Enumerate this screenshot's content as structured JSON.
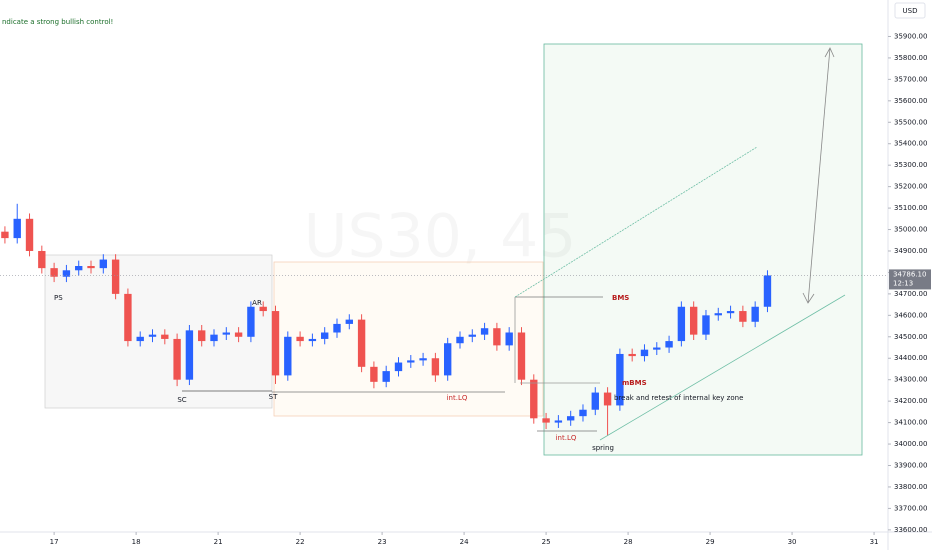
{
  "chart_data": {
    "type": "candlestick",
    "top_note": "ndicate a strong bullish control!",
    "watermark": "US30, 45",
    "currency": "USD",
    "last_price": {
      "value": 34786.1,
      "label": "34786.10"
    },
    "countdown": "12:13",
    "annotations": {
      "ps": "PS",
      "sc": "SC",
      "ar": "AR",
      "st": "ST",
      "int_lq_1": "int.LQ",
      "int_lq_2": "int.LQ",
      "bms": "BMS",
      "mbms": "mBMS",
      "spring": "spring",
      "retest": "break and retest of internal key zone"
    },
    "up_color": "#2962ff",
    "down_color": "#ef5350",
    "x": [
      -0.6,
      -0.45,
      -0.3,
      -0.15,
      0,
      0.15,
      0.3,
      0.45,
      0.6,
      0.75,
      0.9,
      1.05,
      1.2,
      1.35,
      1.5,
      1.65,
      1.8,
      1.95,
      2.1,
      2.25,
      2.4,
      2.55,
      2.7,
      2.85,
      3.0,
      3.15,
      3.3,
      3.45,
      3.6,
      3.75,
      3.9,
      4.05,
      4.2,
      4.35,
      4.5,
      4.65,
      4.8,
      4.95,
      5.1,
      5.25,
      5.4,
      5.55,
      5.7,
      5.85,
      6.0,
      6.15,
      6.3,
      6.45,
      6.6,
      6.75,
      6.9,
      7.05,
      7.2,
      7.35,
      7.5,
      7.65,
      7.8,
      7.95,
      8.1,
      8.25,
      8.4,
      8.55,
      8.7
    ],
    "open": [
      34990,
      34960,
      35050,
      34900,
      34820,
      34780,
      34810,
      34830,
      34820,
      34860,
      34700,
      34480,
      34500,
      34510,
      34490,
      34300,
      34530,
      34480,
      34510,
      34520,
      34500,
      34640,
      34620,
      34320,
      34500,
      34480,
      34490,
      34520,
      34560,
      34580,
      34360,
      34290,
      34340,
      34380,
      34390,
      34400,
      34320,
      34470,
      34500,
      34510,
      34540,
      34460,
      34520,
      34300,
      34120,
      34100,
      34110,
      34130,
      34160,
      34240,
      34180,
      34420,
      34410,
      34440,
      34450,
      34480,
      34640,
      34510,
      34600,
      34610,
      34620,
      34570,
      34640
    ],
    "high": [
      35015,
      35120,
      35075,
      34925,
      34845,
      34835,
      34855,
      34855,
      34885,
      34885,
      34725,
      34525,
      34535,
      34535,
      34515,
      34555,
      34555,
      34535,
      34545,
      34545,
      34665,
      34665,
      34645,
      34525,
      34525,
      34515,
      34545,
      34585,
      34605,
      34605,
      34385,
      34365,
      34405,
      34415,
      34425,
      34425,
      34495,
      34525,
      34535,
      34565,
      34565,
      34545,
      34545,
      34325,
      34145,
      34135,
      34155,
      34185,
      34265,
      34265,
      34445,
      34445,
      34465,
      34475,
      34505,
      34665,
      34665,
      34625,
      34635,
      34645,
      34645,
      34665,
      34810
    ],
    "low": [
      34935,
      34935,
      34875,
      34795,
      34755,
      34755,
      34785,
      34795,
      34795,
      34675,
      34455,
      34455,
      34475,
      34465,
      34270,
      34275,
      34455,
      34455,
      34485,
      34475,
      34475,
      34595,
      34280,
      34295,
      34455,
      34455,
      34465,
      34495,
      34535,
      34335,
      34260,
      34265,
      34315,
      34355,
      34365,
      34290,
      34295,
      34445,
      34475,
      34485,
      34435,
      34435,
      34275,
      34095,
      34070,
      34075,
      34085,
      34105,
      34135,
      34040,
      34155,
      34385,
      34385,
      34415,
      34425,
      34455,
      34485,
      34485,
      34575,
      34585,
      34545,
      34545,
      34615
    ],
    "close": [
      34960,
      35050,
      34900,
      34820,
      34780,
      34810,
      34830,
      34820,
      34860,
      34700,
      34480,
      34500,
      34510,
      34490,
      34300,
      34530,
      34480,
      34510,
      34520,
      34500,
      34640,
      34620,
      34320,
      34500,
      34480,
      34490,
      34520,
      34560,
      34580,
      34360,
      34290,
      34340,
      34380,
      34390,
      34400,
      34320,
      34470,
      34500,
      34510,
      34540,
      34460,
      34520,
      34300,
      34120,
      34100,
      34110,
      34130,
      34160,
      34240,
      34180,
      34420,
      34410,
      34440,
      34450,
      34480,
      34640,
      34510,
      34600,
      34610,
      34620,
      34570,
      34640,
      34786
    ],
    "xlim": [
      -0.66,
      10.17
    ],
    "xticks": [
      {
        "value": 0,
        "label": "17"
      },
      {
        "value": 1,
        "label": "18"
      },
      {
        "value": 2,
        "label": "21"
      },
      {
        "value": 3,
        "label": "22"
      },
      {
        "value": 4,
        "label": "23"
      },
      {
        "value": 5,
        "label": "24"
      },
      {
        "value": 6,
        "label": "25"
      },
      {
        "value": 7,
        "label": "28"
      },
      {
        "value": 8,
        "label": "29"
      },
      {
        "value": 9,
        "label": "30"
      },
      {
        "value": 10,
        "label": "31"
      }
    ],
    "ylim": [
      33590,
      36070
    ],
    "yticks": [
      {
        "value": 33600,
        "label": "33600.00"
      },
      {
        "value": 33700,
        "label": "33700.00"
      },
      {
        "value": 33800,
        "label": "33800.00"
      },
      {
        "value": 33900,
        "label": "33900.00"
      },
      {
        "value": 34000,
        "label": "34000.00"
      },
      {
        "value": 34100,
        "label": "34100.00"
      },
      {
        "value": 34200,
        "label": "34200.00"
      },
      {
        "value": 34300,
        "label": "34300.00"
      },
      {
        "value": 34400,
        "label": "34400.00"
      },
      {
        "value": 34500,
        "label": "34500.00"
      },
      {
        "value": 34600,
        "label": "34600.00"
      },
      {
        "value": 34700,
        "label": "34700.00"
      },
      {
        "value": 34800,
        "label": "34800.00"
      },
      {
        "value": 34900,
        "label": "34900.00"
      },
      {
        "value": 35000,
        "label": "35000.00"
      },
      {
        "value": 35100,
        "label": "35100.00"
      },
      {
        "value": 35200,
        "label": "35200.00"
      },
      {
        "value": 35300,
        "label": "35300.00"
      },
      {
        "value": 35400,
        "label": "35400.00"
      },
      {
        "value": 35500,
        "label": "35500.00"
      },
      {
        "value": 35600,
        "label": "35600.00"
      },
      {
        "value": 35700,
        "label": "35700.00"
      },
      {
        "value": 35800,
        "label": "35800.00"
      },
      {
        "value": 35900,
        "label": "35900.00"
      }
    ]
  }
}
